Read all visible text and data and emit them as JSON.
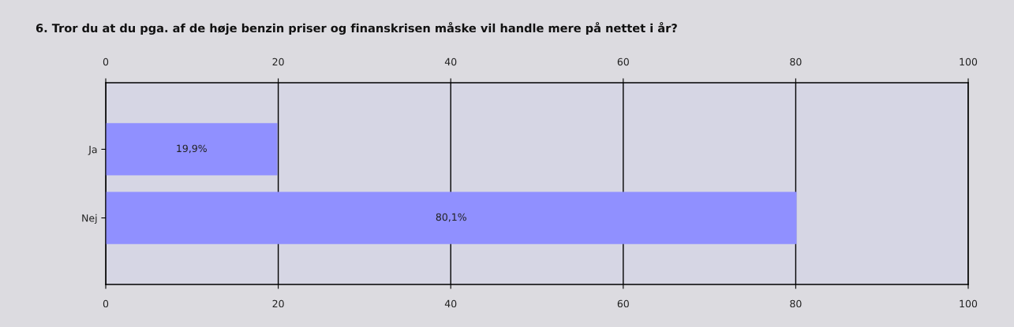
{
  "chart_data": {
    "type": "bar",
    "orientation": "horizontal",
    "title": "6. Tror du at du pga. af de høje benzin priser og finanskrisen måske vil handle mere på nettet i år?",
    "categories": [
      "Ja",
      "Nej"
    ],
    "values": [
      19.9,
      80.1
    ],
    "color": "#9090ff",
    "value_labels": [
      "19,9%",
      "80,1%"
    ],
    "xlim": [
      0,
      100
    ],
    "xticks": [
      0,
      20,
      40,
      60,
      80,
      100
    ],
    "x2lim": [
      0,
      100
    ],
    "x2ticks": [
      0,
      20,
      40,
      60,
      80,
      100
    ],
    "grid": "x"
  }
}
